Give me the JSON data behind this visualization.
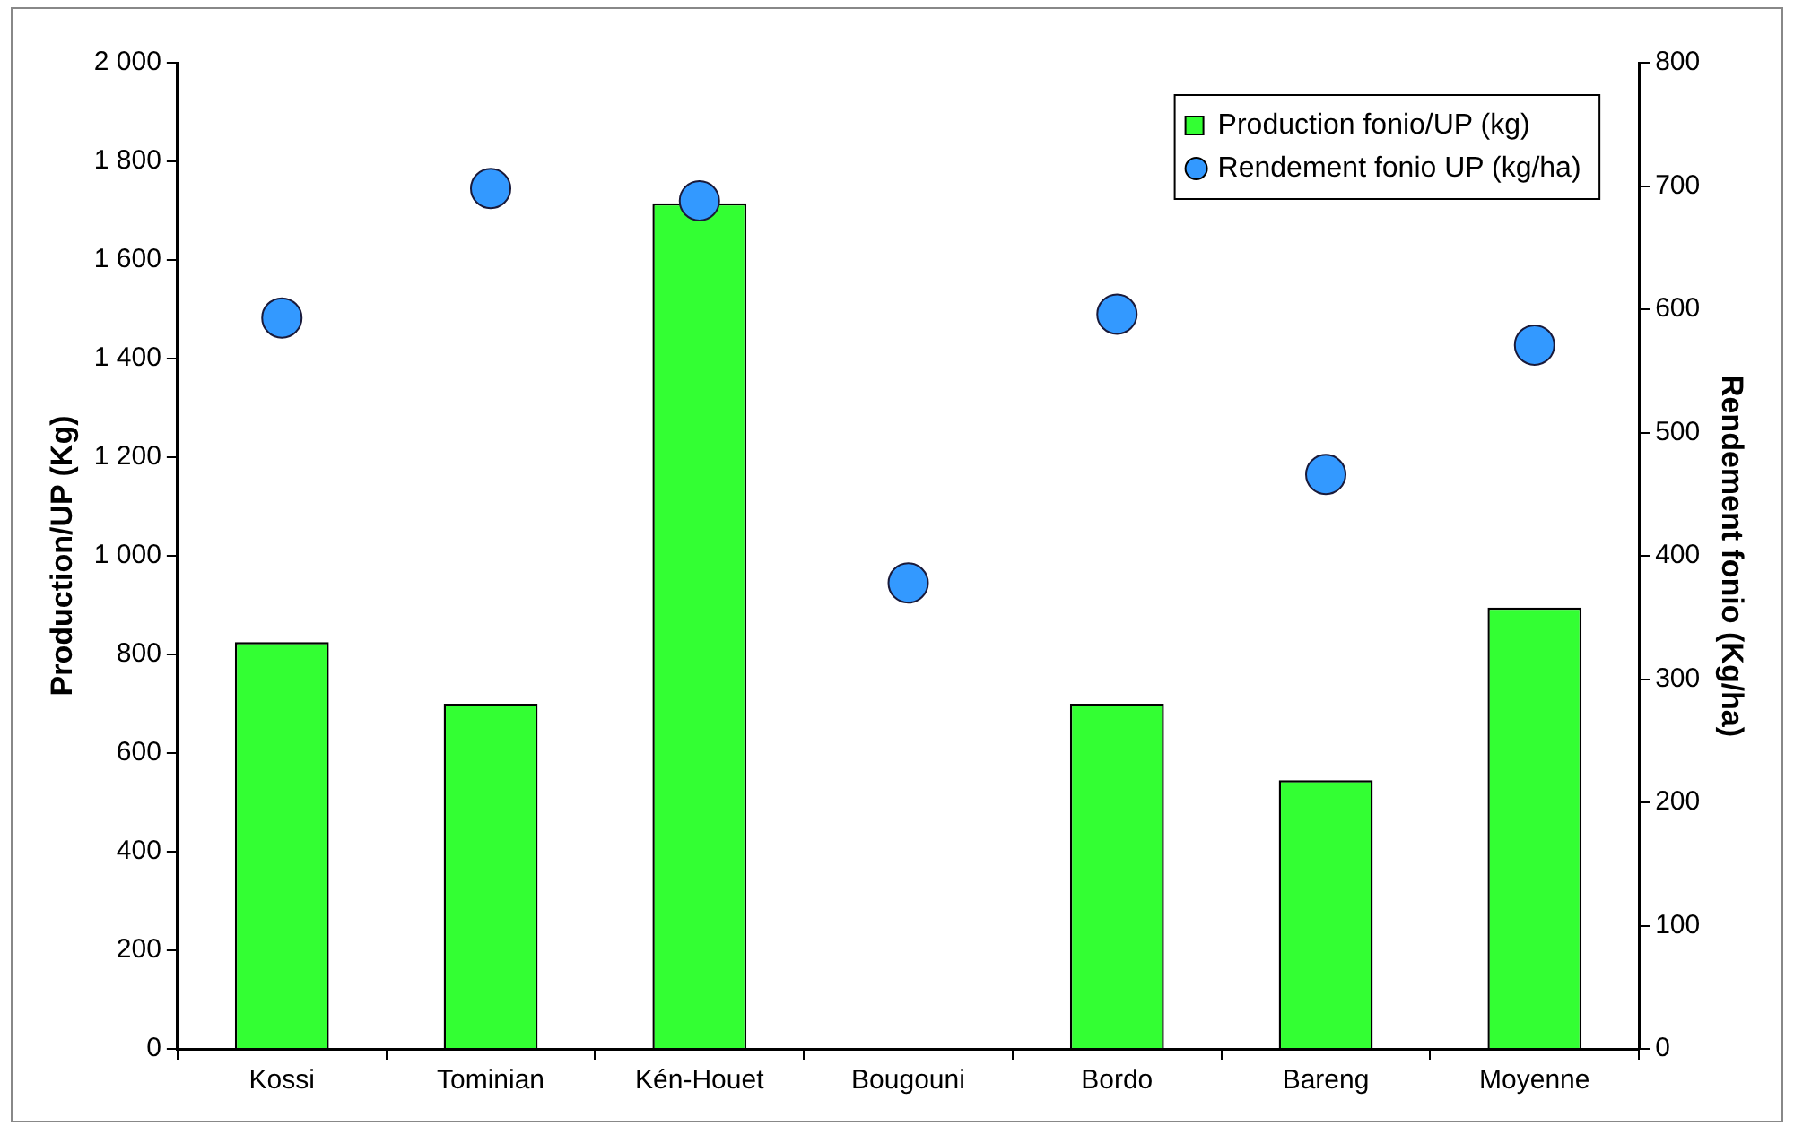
{
  "chart_data": {
    "type": "bar",
    "ylabel": "Production/UP (Kg)",
    "y2label": "Rendement fonio (Kg/ha)",
    "categories": [
      "Kossi",
      "Tominian",
      "Kén-Houet",
      "Bougouni",
      "Bordo",
      "Bareng",
      "Moyenne"
    ],
    "series": [
      {
        "name": "Production fonio/UP (kg)",
        "color": "#33ff33",
        "values": [
          825,
          700,
          1715,
          null,
          700,
          545,
          895
        ]
      },
      {
        "name": "Rendement fonio UP (kg/ha)",
        "type": "scatter",
        "axis": "y2",
        "color": "#3399ff",
        "marker": "circle",
        "values": [
          593,
          698,
          688,
          378,
          596,
          466,
          571
        ]
      }
    ],
    "ylim": [
      0,
      2000
    ],
    "yticks": [
      0,
      200,
      400,
      600,
      800,
      {
        "value": 1000,
        "label": "1 000"
      },
      {
        "value": 1200,
        "label": "1 200"
      },
      {
        "value": 1400,
        "label": "1 400"
      },
      {
        "value": 1600,
        "label": "1 600"
      },
      {
        "value": 1800,
        "label": "1 800"
      },
      {
        "value": 2000,
        "label": "2 000"
      }
    ],
    "y2lim": [
      0,
      800
    ],
    "y2ticks": [
      0,
      100,
      200,
      300,
      400,
      500,
      600,
      700,
      800
    ],
    "grid": false,
    "legend": "top right"
  }
}
